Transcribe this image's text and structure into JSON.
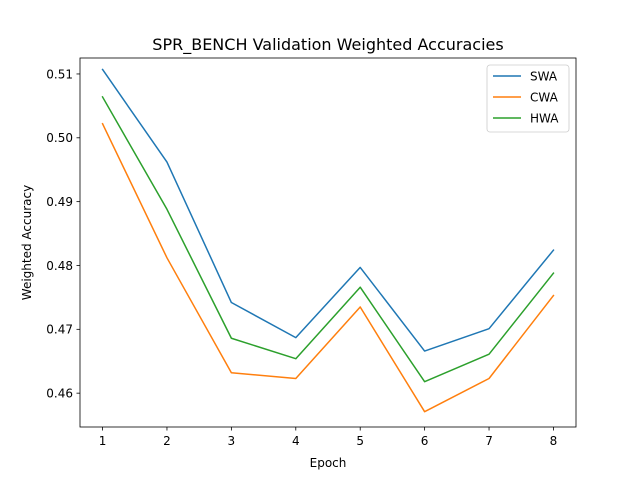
{
  "chart_data": {
    "type": "line",
    "title": "SPR_BENCH Validation Weighted Accuracies",
    "xlabel": "Epoch",
    "ylabel": "Weighted Accuracy",
    "x": [
      1,
      2,
      3,
      4,
      5,
      6,
      7,
      8
    ],
    "xticks": [
      "1",
      "2",
      "3",
      "4",
      "5",
      "6",
      "7",
      "8"
    ],
    "yticks": [
      "0.46",
      "0.47",
      "0.48",
      "0.49",
      "0.50",
      "0.51"
    ],
    "xlim": [
      0.65,
      8.35
    ],
    "ylim": [
      0.4547,
      0.5125
    ],
    "grid": false,
    "legend_position": "top-right",
    "series": [
      {
        "name": "SWA",
        "color": "#1f77b4",
        "values": [
          0.5107,
          0.4962,
          0.4742,
          0.4687,
          0.4797,
          0.4666,
          0.4701,
          0.4824
        ]
      },
      {
        "name": "CWA",
        "color": "#ff7f0e",
        "values": [
          0.5022,
          0.4812,
          0.4632,
          0.4623,
          0.4735,
          0.4571,
          0.4623,
          0.4753
        ]
      },
      {
        "name": "HWA",
        "color": "#2ca02c",
        "values": [
          0.5064,
          0.4888,
          0.4686,
          0.4654,
          0.4766,
          0.4618,
          0.4661,
          0.4788
        ]
      }
    ]
  }
}
